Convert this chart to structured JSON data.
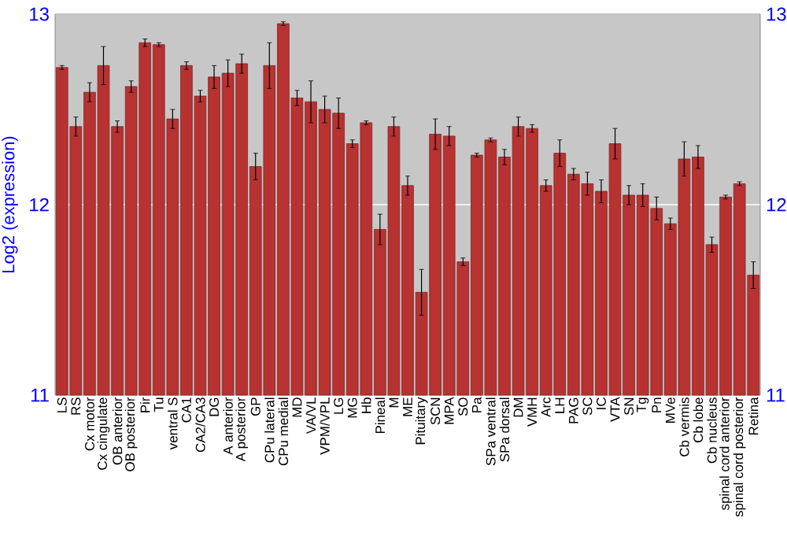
{
  "chart_data": {
    "type": "bar",
    "ylabel": "Log2 (expression)",
    "categories": [
      "LS",
      "RS",
      "Cx motor",
      "Cx cingulate",
      "OB anterior",
      "OB posterior",
      "Pir",
      "Tu",
      "ventral S",
      "CA1",
      "CA2/CA3",
      "DG",
      "A anterior",
      "A posterior",
      "GP",
      "CPu lateral",
      "CPu medial",
      "MD",
      "VA/VL",
      "VPM/VPL",
      "LG",
      "MG",
      "Hb",
      "Pineal",
      "M",
      "ME",
      "Pituitary",
      "SCN",
      "MPA",
      "SO",
      "Pa",
      "SPa ventral",
      "SPa dorsal",
      "DM",
      "VMH",
      "Arc",
      "LH",
      "PAG",
      "SC",
      "IC",
      "VTA",
      "SN",
      "Tg",
      "Pn",
      "MVe",
      "Cb vermis",
      "Cb lobe",
      "Cb nucleus",
      "spinal cord anterior",
      "spinal cord posterior",
      "Retina"
    ],
    "values": [
      12.72,
      12.41,
      12.59,
      12.73,
      12.41,
      12.62,
      12.85,
      12.84,
      12.45,
      12.73,
      12.57,
      12.67,
      12.69,
      12.74,
      12.2,
      12.73,
      12.95,
      12.56,
      12.54,
      12.5,
      12.48,
      12.32,
      12.43,
      11.87,
      12.41,
      12.1,
      11.54,
      12.37,
      12.36,
      11.7,
      12.26,
      12.34,
      12.25,
      12.41,
      12.4,
      12.1,
      12.27,
      12.16,
      12.11,
      12.07,
      12.32,
      12.05,
      12.05,
      11.98,
      11.9,
      12.24,
      12.25,
      11.79,
      12.04,
      12.11,
      11.63
    ],
    "errors": [
      0.01,
      0.05,
      0.05,
      0.1,
      0.03,
      0.03,
      0.02,
      0.01,
      0.05,
      0.02,
      0.03,
      0.06,
      0.07,
      0.05,
      0.07,
      0.12,
      0.01,
      0.04,
      0.11,
      0.07,
      0.08,
      0.02,
      0.01,
      0.08,
      0.05,
      0.05,
      0.12,
      0.08,
      0.05,
      0.02,
      0.01,
      0.01,
      0.04,
      0.05,
      0.02,
      0.03,
      0.07,
      0.03,
      0.06,
      0.06,
      0.08,
      0.05,
      0.06,
      0.06,
      0.03,
      0.09,
      0.06,
      0.04,
      0.01,
      0.01,
      0.07
    ],
    "color": "#b83232",
    "ylim": [
      11,
      13
    ],
    "yticks": [
      11,
      12,
      13
    ],
    "y2lim": [
      11,
      13
    ],
    "y2ticks": [
      11,
      12,
      13
    ],
    "grid": "y"
  }
}
